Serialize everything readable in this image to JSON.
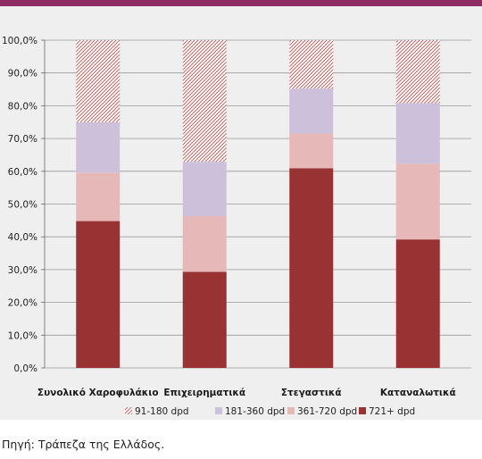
{
  "colors": {
    "top_bar": "#8e2d63",
    "panel_bg": "#efefef",
    "gridline": "#9a9a9a"
  },
  "chart_data": {
    "type": "bar",
    "stacked": true,
    "categories": [
      "Συνολικό Χαροφυλάκιο",
      "Επιχειρηματικά",
      "Στεγαστικά",
      "Καταναλωτικά"
    ],
    "ylim": [
      0,
      100
    ],
    "yticks": [
      "0,0%",
      "10,0%",
      "20,0%",
      "30,0%",
      "40,0%",
      "50,0%",
      "60,0%",
      "70,0%",
      "80,0%",
      "90,0%",
      "100,0%"
    ],
    "grid": true,
    "legend_position": "bottom",
    "series": [
      {
        "name": "721+ dpd",
        "color": "#993333",
        "pattern": "solid",
        "values": [
          44.8,
          29.3,
          60.9,
          39.2
        ]
      },
      {
        "name": "361-720 dpd",
        "color": "#e6b8b7",
        "pattern": "solid",
        "values": [
          14.8,
          17.0,
          10.6,
          23.1
        ]
      },
      {
        "name": "181-360 dpd",
        "color": "#ccc0da",
        "pattern": "solid",
        "values": [
          15.4,
          16.6,
          13.7,
          18.5
        ]
      },
      {
        "name": "91-180 dpd",
        "color": "#c0504d",
        "pattern": "hatch",
        "values": [
          25.0,
          37.1,
          14.8,
          19.2
        ]
      }
    ],
    "legend_order": [
      "91-180 dpd",
      "181-360 dpd",
      "361-720 dpd",
      "721+ dpd"
    ]
  },
  "source_note": "Πηγή: Τράπεζα της Ελλάδος."
}
